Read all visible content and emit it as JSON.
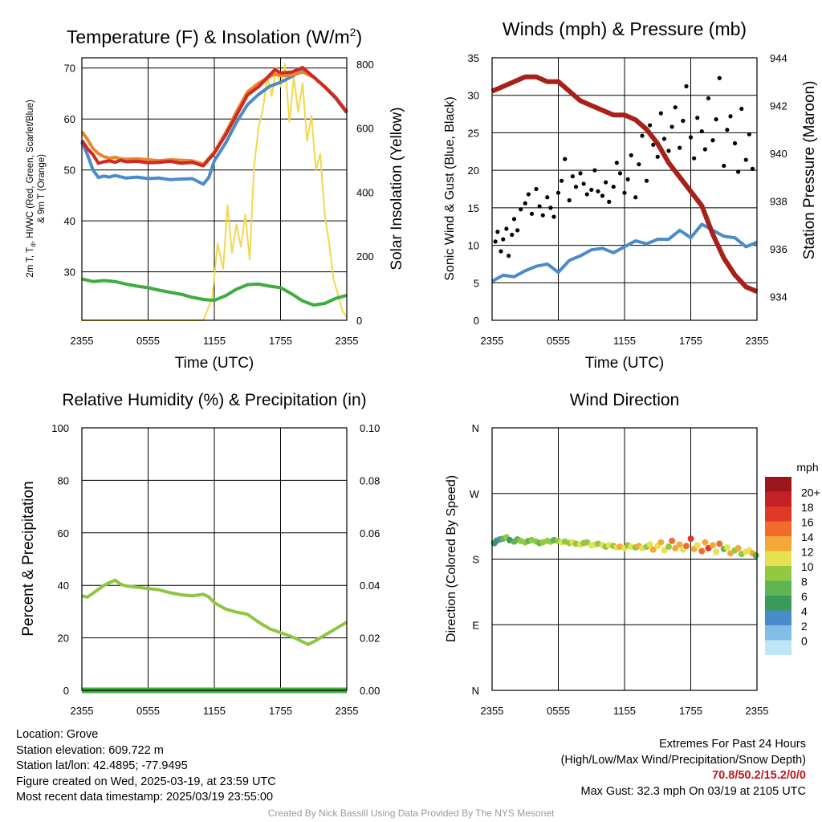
{
  "time_ticks": [
    "2355",
    "0555",
    "1155",
    "1755",
    "2355"
  ],
  "chart_data": [
    {
      "id": "temp",
      "type": "line",
      "title": "Temperature (F) & Insolation (W/m",
      "title_sup": "2",
      "title_end": ")",
      "xlabel": "Time (UTC)",
      "ylabel": "2m T, T",
      "ylabel_sub": "d",
      "ylabel_rest": ", HI/WC (Red, Green, Scarlet/Blue)",
      "ylabel2": "& 9m T (Orange)",
      "y2label": "Solar Insolation (Yellow)",
      "ylim": [
        20.5,
        72
      ],
      "yticks": [
        30,
        40,
        50,
        60,
        70
      ],
      "y2lim": [
        0,
        820
      ],
      "y2ticks": [
        0,
        200,
        400,
        600,
        800
      ],
      "xlim": [
        0,
        24
      ],
      "series": [
        {
          "axis": "left",
          "color": "#e9862e",
          "x": [
            0,
            0.5,
            1,
            1.5,
            2,
            2.5,
            3,
            3.5,
            4,
            5,
            6,
            7,
            8,
            9,
            10,
            11,
            12,
            13,
            14,
            15,
            16,
            17,
            17.5,
            18,
            19,
            20,
            21,
            22,
            23,
            24
          ],
          "y": [
            57.5,
            56,
            54.2,
            53.2,
            52.6,
            52.3,
            52.5,
            52.2,
            52.1,
            52.2,
            52.0,
            51.8,
            52.0,
            51.9,
            51.8,
            51.1,
            53.5,
            57.2,
            61.4,
            65.3,
            67.0,
            68.3,
            68.8,
            68.5,
            68.6,
            69.2,
            68.2,
            66.4,
            64.2,
            61.5
          ]
        },
        {
          "axis": "left",
          "color": "#4a8cc9",
          "x": [
            0,
            0.5,
            1,
            1.5,
            2,
            2.5,
            3,
            4,
            5,
            6,
            7,
            8,
            9,
            10,
            11,
            11.5,
            12,
            13,
            14,
            15,
            16,
            17,
            18,
            19,
            20,
            21,
            22,
            23,
            24
          ],
          "y": [
            55.5,
            53,
            50,
            48.5,
            48.8,
            48.6,
            48.9,
            48.4,
            48.6,
            48.3,
            48.4,
            48.1,
            48.2,
            48.3,
            47.2,
            48.5,
            51.8,
            55.2,
            59.3,
            62.8,
            64.8,
            66.4,
            67.2,
            68.3,
            69.6,
            68.3,
            66.3,
            64.0,
            61.2
          ]
        },
        {
          "axis": "left",
          "color": "#d0291f",
          "x": [
            0,
            0.5,
            1,
            1.5,
            2,
            2.5,
            3,
            3.5,
            4,
            5,
            6,
            7,
            8,
            9,
            10,
            11,
            12,
            13,
            14,
            15,
            16,
            17,
            17.5,
            18,
            19,
            20,
            21,
            22,
            23,
            24
          ],
          "y": [
            55.8,
            54.2,
            53,
            51.3,
            51.6,
            51.8,
            51.5,
            51.9,
            51.6,
            51.7,
            51.4,
            51.5,
            51.7,
            51.3,
            51.5,
            50.8,
            53.3,
            56.8,
            60.7,
            64.7,
            66.3,
            68.6,
            69.7,
            69.0,
            69.2,
            70.1,
            68.2,
            66.3,
            64.2,
            61.3
          ]
        },
        {
          "axis": "left",
          "color": "#3eac3e",
          "x": [
            0,
            1,
            2,
            3,
            4,
            5,
            6,
            7,
            8,
            9,
            10,
            11,
            12,
            13,
            14,
            15,
            16,
            17,
            18,
            19,
            20,
            21,
            22,
            23,
            24
          ],
          "y": [
            28.6,
            28.1,
            28.3,
            28.1,
            27.6,
            27.2,
            26.9,
            26.4,
            26.0,
            25.6,
            25.0,
            24.6,
            24.4,
            25.3,
            26.6,
            27.5,
            27.6,
            27.2,
            26.9,
            25.7,
            24.3,
            23.5,
            23.8,
            24.8,
            25.4
          ]
        },
        {
          "axis": "right",
          "color": "#f2d84b",
          "x": [
            0,
            9,
            11,
            11.8,
            12.3,
            12.8,
            13.2,
            13.6,
            14,
            14.4,
            14.8,
            15.2,
            15.6,
            16,
            16.4,
            16.8,
            17.2,
            17.6,
            18,
            18.4,
            18.8,
            19.2,
            19.6,
            20,
            20.4,
            20.8,
            21.2,
            21.6,
            22,
            22.4,
            22.8,
            23.2,
            23.6,
            24
          ],
          "y": [
            0,
            0,
            0,
            70,
            240,
            160,
            360,
            210,
            300,
            230,
            330,
            190,
            480,
            600,
            660,
            760,
            700,
            790,
            730,
            800,
            620,
            760,
            650,
            740,
            560,
            640,
            470,
            520,
            330,
            240,
            130,
            80,
            30,
            10
          ]
        }
      ]
    },
    {
      "id": "wind",
      "type": "line",
      "title": "Winds (mph) & Pressure (mb)",
      "xlabel": "Time (UTC)",
      "ylabel": "Sonic Wind & Gust (Blue, Black)",
      "y2label": "Station Pressure (Maroon)",
      "ylim": [
        0,
        35
      ],
      "yticks": [
        0,
        5,
        10,
        15,
        20,
        25,
        30,
        35
      ],
      "y2lim": [
        933,
        944
      ],
      "y2ticks": [
        934,
        936,
        938,
        940,
        942,
        944
      ],
      "xlim": [
        0,
        24
      ],
      "series": [
        {
          "axis": "right",
          "color": "#a8201a",
          "x": [
            0,
            1,
            2,
            3,
            4,
            5,
            6,
            7,
            8,
            9,
            10,
            11,
            12,
            13,
            14,
            15,
            16,
            17,
            18,
            19,
            20,
            21,
            22,
            23,
            24
          ],
          "y": [
            942.6,
            942.8,
            943.0,
            943.2,
            943.2,
            943.0,
            943.0,
            942.6,
            942.2,
            942.0,
            941.8,
            941.6,
            941.6,
            941.4,
            941.0,
            940.4,
            939.6,
            939.0,
            938.4,
            937.8,
            936.6,
            935.6,
            934.9,
            934.4,
            934.2
          ]
        },
        {
          "axis": "left",
          "color": "#4a8cc9",
          "x": [
            0,
            1,
            2,
            3,
            4,
            5,
            6,
            7,
            8,
            9,
            10,
            11,
            12,
            13,
            14,
            15,
            16,
            17,
            18,
            19,
            20,
            21,
            22,
            23,
            24
          ],
          "y": [
            5.2,
            6.0,
            5.8,
            6.6,
            7.2,
            7.5,
            6.4,
            8.0,
            8.6,
            9.4,
            9.6,
            9.0,
            9.8,
            10.6,
            10.2,
            10.8,
            10.8,
            12.0,
            11.0,
            12.8,
            12.0,
            11.2,
            11.0,
            9.8,
            10.4
          ]
        },
        {
          "axis": "left",
          "color": "#000000",
          "dots": true,
          "x": [
            0.3,
            0.5,
            0.8,
            1.0,
            1.3,
            1.5,
            1.8,
            2.0,
            2.3,
            2.6,
            3.0,
            3.3,
            3.6,
            4.0,
            4.3,
            4.6,
            5.0,
            5.3,
            5.6,
            6.0,
            6.3,
            6.6,
            7.0,
            7.3,
            7.6,
            8.0,
            8.3,
            8.6,
            9.0,
            9.3,
            9.6,
            10.0,
            10.3,
            10.6,
            11.0,
            11.3,
            11.6,
            12.0,
            12.3,
            12.6,
            13.0,
            13.3,
            13.6,
            14.0,
            14.3,
            14.6,
            15.0,
            15.3,
            15.6,
            16.0,
            16.3,
            16.6,
            17.0,
            17.3,
            17.6,
            18.0,
            18.3,
            18.6,
            19.0,
            19.3,
            19.6,
            20.0,
            20.3,
            20.6,
            21.0,
            21.3,
            21.6,
            22.0,
            22.3,
            22.6,
            23.0,
            23.3,
            23.6
          ],
          "y": [
            10.5,
            11.8,
            9.2,
            10.8,
            12.2,
            8.6,
            11.4,
            13.5,
            12.0,
            14.8,
            15.6,
            16.8,
            14.2,
            17.5,
            15.2,
            14.0,
            16.4,
            15.0,
            13.8,
            17.0,
            18.6,
            21.5,
            16.0,
            19.2,
            17.8,
            19.6,
            18.2,
            16.8,
            17.4,
            20.0,
            17.2,
            16.6,
            18.4,
            15.8,
            17.8,
            21.0,
            19.6,
            17.0,
            18.8,
            22.0,
            16.4,
            20.8,
            24.6,
            18.6,
            26.0,
            23.4,
            21.8,
            27.6,
            24.2,
            22.6,
            25.8,
            28.4,
            23.0,
            26.6,
            31.2,
            24.4,
            21.6,
            27.0,
            25.2,
            22.8,
            29.6,
            24.0,
            26.8,
            32.3,
            20.6,
            25.4,
            27.2,
            23.6,
            19.8,
            28.2,
            21.4,
            24.8,
            20.2
          ]
        }
      ]
    },
    {
      "id": "rh",
      "type": "line",
      "title": "Relative Humidity (%) & Precipitation (in)",
      "ylabel": "Percent & Precipitation",
      "ylim": [
        0,
        100
      ],
      "yticks": [
        0,
        20,
        40,
        60,
        80,
        100
      ],
      "y2lim": [
        0,
        0.1
      ],
      "y2ticks": [
        "0.00",
        "0.02",
        "0.04",
        "0.06",
        "0.08",
        "0.10"
      ],
      "xlim": [
        0,
        24
      ],
      "series": [
        {
          "axis": "left",
          "color": "#8ec641",
          "x": [
            0,
            0.5,
            1,
            1.5,
            2,
            2.5,
            3,
            3.5,
            4,
            5,
            6,
            7,
            8,
            9,
            10,
            11,
            11.5,
            12,
            13,
            14,
            15,
            16,
            17,
            18,
            19,
            20,
            20.5,
            21,
            22,
            23,
            24
          ],
          "y": [
            36,
            35.5,
            37,
            38.5,
            40,
            41,
            42,
            40.5,
            39.8,
            39.3,
            38.8,
            38.3,
            37.2,
            36.4,
            36.0,
            36.6,
            35.6,
            33.4,
            31.0,
            29.8,
            29.0,
            26.0,
            23.5,
            22.0,
            20.5,
            18.5,
            17.5,
            18.5,
            21.0,
            23.5,
            26.0
          ]
        },
        {
          "axis": "right",
          "color": "#3eac3e",
          "x": [
            0,
            24
          ],
          "y": [
            0,
            0
          ]
        }
      ]
    },
    {
      "id": "wdir",
      "type": "scatter",
      "title": "Wind Direction",
      "ylabel": "Direction (Colored By Speed)",
      "yticks": [
        "N",
        "E",
        "S",
        "W",
        "N"
      ],
      "ylim": [
        0,
        360
      ],
      "xlim": [
        0,
        24
      ],
      "colorbar_title": "mph",
      "colorbar_labels": [
        "0",
        "2",
        "4",
        "6",
        "8",
        "10",
        "12",
        "14",
        "16",
        "18",
        "20+"
      ],
      "colorbar_colors": [
        "#bfe6f7",
        "#82bde6",
        "#4a8cc9",
        "#3a9a58",
        "#5eb552",
        "#92c842",
        "#e7e050",
        "#f5a83a",
        "#ef6c2d",
        "#e03a27",
        "#c42126",
        "#9c171c"
      ],
      "series": [
        {
          "name": "direction",
          "x": [
            0.2,
            0.4,
            0.7,
            1.0,
            1.3,
            1.6,
            2.0,
            2.3,
            2.6,
            3.0,
            3.3,
            3.6,
            4.0,
            4.3,
            4.6,
            5.0,
            5.3,
            5.6,
            6.0,
            6.3,
            6.6,
            7.0,
            7.3,
            7.6,
            8.0,
            8.3,
            8.6,
            9.0,
            9.3,
            9.6,
            10.0,
            10.3,
            10.6,
            11.0,
            11.3,
            11.6,
            12.0,
            12.3,
            12.6,
            13.0,
            13.3,
            13.6,
            14.0,
            14.3,
            14.6,
            15.0,
            15.3,
            15.6,
            16.0,
            16.3,
            16.6,
            17.0,
            17.3,
            17.6,
            18.0,
            18.3,
            18.6,
            19.0,
            19.3,
            19.6,
            20.0,
            20.3,
            20.6,
            21.0,
            21.3,
            21.6,
            22.0,
            22.3,
            22.6,
            23.0,
            23.3,
            23.6,
            23.9
          ],
          "y": [
            202,
            205,
            207,
            208,
            210,
            206,
            204,
            207,
            205,
            203,
            205,
            206,
            204,
            202,
            203,
            205,
            204,
            206,
            205,
            203,
            204,
            202,
            203,
            201,
            200,
            202,
            203,
            199,
            200,
            201,
            199,
            197,
            199,
            198,
            196,
            197,
            195,
            199,
            197,
            196,
            198,
            195,
            197,
            200,
            193,
            198,
            203,
            192,
            197,
            205,
            195,
            200,
            193,
            198,
            208,
            194,
            199,
            191,
            203,
            195,
            199,
            190,
            201,
            194,
            196,
            188,
            192,
            195,
            187,
            190,
            192,
            188,
            185
          ],
          "speed": [
            4,
            5,
            3,
            6,
            8,
            5,
            6,
            7,
            8,
            8,
            6,
            8,
            9,
            7,
            8,
            9,
            8,
            7,
            9,
            10,
            8,
            9,
            11,
            8,
            10,
            9,
            8,
            10,
            11,
            9,
            10,
            8,
            11,
            9,
            10,
            12,
            11,
            9,
            10,
            8,
            12,
            11,
            9,
            10,
            13,
            11,
            12,
            10,
            9,
            14,
            12,
            13,
            10,
            15,
            16,
            12,
            11,
            14,
            13,
            16,
            12,
            10,
            15,
            7,
            11,
            13,
            9,
            12,
            8,
            11,
            10,
            12,
            7
          ]
        }
      ]
    }
  ],
  "info": {
    "location": "Location: Grove",
    "elevation": "Station elevation: 609.722 m",
    "latlon": "Station lat/lon: 42.4895; -77.9495",
    "created": "Figure created on Wed, 2025-03-19, at 23:59 UTC",
    "recent": "Most recent data timestamp: 2025/03/19 23:55:00"
  },
  "extremes": {
    "title": "Extremes For Past 24 Hours",
    "subtitle": "(High/Low/Max Wind/Precipitation/Snow Depth)",
    "values": "70.8/50.2/15.2/0/0",
    "gust": "Max Gust: 32.3 mph On 03/19 at 2105 UTC"
  },
  "credit": "Created By Nick Bassill Using Data Provided By The NYS Mesonet"
}
